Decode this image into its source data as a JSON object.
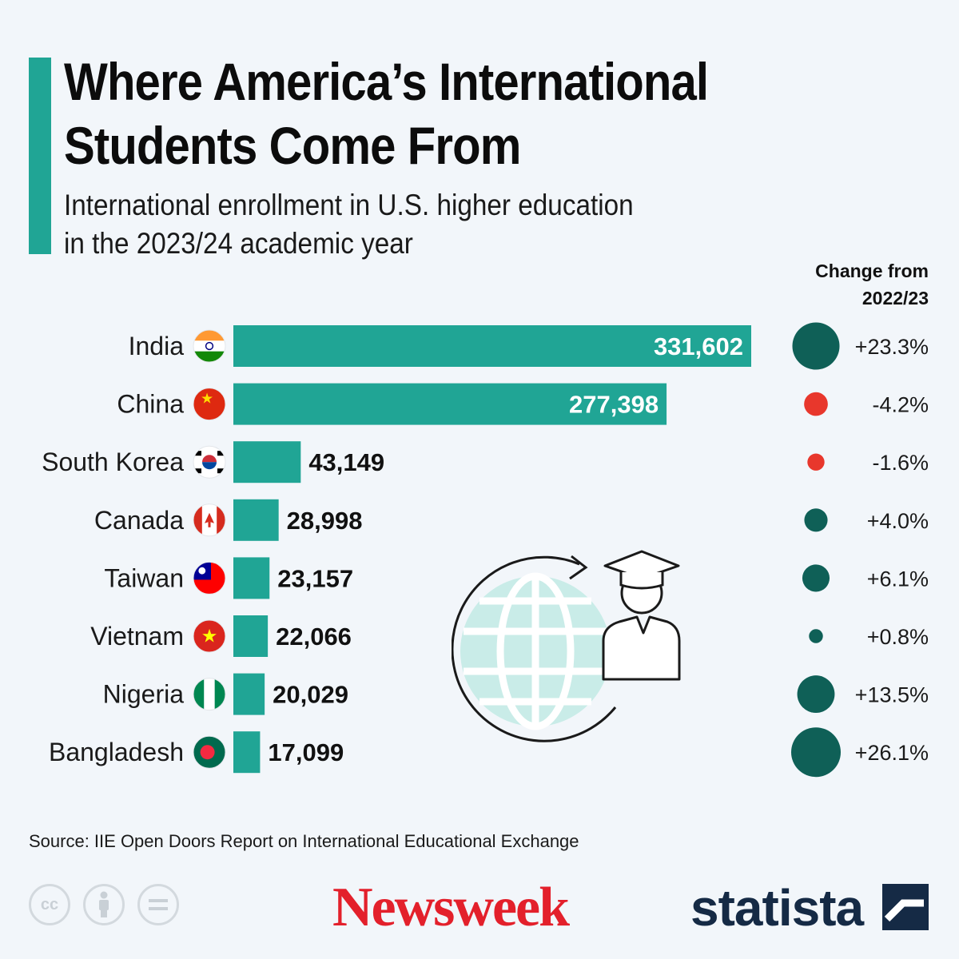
{
  "title": "Where America’s International Students Come From",
  "subtitle_line1": "International enrollment in U.S. higher education",
  "subtitle_line2": "in the 2023/24 academic year",
  "change_header_line1": "Change from",
  "change_header_line2": "2022/23",
  "source": "Source: IIE Open Doors Report on International Educational Exchange",
  "brand_newsweek": "Newsweek",
  "brand_statista": "statista",
  "colors": {
    "bar": "#20a595",
    "positive": "#0f6057",
    "negative": "#e8372c",
    "newsweek": "#e3202b",
    "statista": "#152a45"
  },
  "chart_data": {
    "type": "bar",
    "categories": [
      "India",
      "China",
      "South Korea",
      "Canada",
      "Taiwan",
      "Vietnam",
      "Nigeria",
      "Bangladesh"
    ],
    "values": [
      331602,
      277398,
      43149,
      28998,
      23157,
      22066,
      20029,
      17099
    ],
    "value_labels": [
      "331,602",
      "277,398",
      "43,149",
      "28,998",
      "23,157",
      "22,066",
      "20,029",
      "17,099"
    ],
    "change_pct": [
      23.3,
      -4.2,
      -1.6,
      4.0,
      6.1,
      0.8,
      13.5,
      26.1
    ],
    "change_labels": [
      "+23.3%",
      "-4.2%",
      "-1.6%",
      "+4.0%",
      "+6.1%",
      "+0.8%",
      "+13.5%",
      "+26.1%"
    ],
    "flags": [
      "india-flag-icon",
      "china-flag-icon",
      "south-korea-flag-icon",
      "canada-flag-icon",
      "taiwan-flag-icon",
      "vietnam-flag-icon",
      "nigeria-flag-icon",
      "bangladesh-flag-icon"
    ]
  }
}
